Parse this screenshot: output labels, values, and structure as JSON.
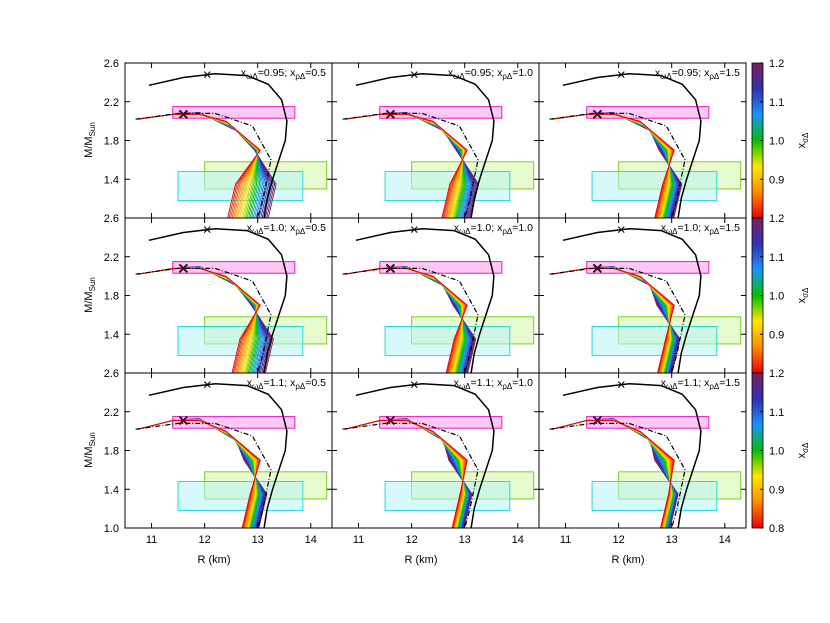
{
  "figure": {
    "xlabel": "R (km)",
    "ylabel_main": "M/M",
    "ylabel_sub": "Sun",
    "colorbar_label_main": "x",
    "colorbar_label_sub": "σΔ"
  },
  "chart_data": {
    "type": "line",
    "grid": false,
    "xlim": [
      10.5,
      14.4
    ],
    "ylim": [
      1.0,
      2.6
    ],
    "x_ticks": [
      "11",
      "12",
      "13",
      "14"
    ],
    "y_ticks_top": [
      "1.4",
      "1.8",
      "2.2",
      "2.6"
    ],
    "y_ticks_bottom": [
      "1.0",
      "1.4",
      "1.8",
      "2.2",
      "2.6"
    ],
    "colorbar_range": [
      0.8,
      1.2
    ],
    "colorbar_ticks": [
      "0.8",
      "0.9",
      "1.0",
      "1.1",
      "1.2"
    ],
    "colormap": [
      "#e8000b",
      "#ff8c00",
      "#ffe600",
      "#00c000",
      "#1e90ff",
      "#3030b0",
      "#7a1f5a"
    ],
    "constraint_boxes": [
      {
        "name": "magenta",
        "r": [
          11.4,
          13.7
        ],
        "m": [
          2.03,
          2.15
        ],
        "fill": "#ff99ee",
        "stroke": "#e020c0"
      },
      {
        "name": "green",
        "r": [
          12.0,
          14.3
        ],
        "m": [
          1.3,
          1.58
        ],
        "fill": "#d6f5a8",
        "stroke": "#7ad020"
      },
      {
        "name": "cyan",
        "r": [
          11.5,
          13.85
        ],
        "m": [
          1.18,
          1.48
        ],
        "fill": "#b8f4f4",
        "stroke": "#30d8d8"
      }
    ],
    "panels": [
      {
        "label_w": "0.95",
        "label_r": "0.5",
        "row": 0,
        "col": 0,
        "spread": 0.85
      },
      {
        "label_w": "0.95",
        "label_r": "1.0",
        "row": 0,
        "col": 1,
        "spread": 0.6
      },
      {
        "label_w": "0.95",
        "label_r": "1.5",
        "row": 0,
        "col": 2,
        "spread": 0.4
      },
      {
        "label_w": "1.0",
        "label_r": "0.5",
        "row": 1,
        "col": 0,
        "spread": 0.7
      },
      {
        "label_w": "1.0",
        "label_r": "1.0",
        "row": 1,
        "col": 1,
        "spread": 0.45
      },
      {
        "label_w": "1.0",
        "label_r": "1.5",
        "row": 1,
        "col": 2,
        "spread": 0.3
      },
      {
        "label_w": "1.1",
        "label_r": "0.5",
        "row": 2,
        "col": 0,
        "spread": 0.35
      },
      {
        "label_w": "1.1",
        "label_r": "1.0",
        "row": 2,
        "col": 1,
        "spread": 0.25
      },
      {
        "label_w": "1.1",
        "label_r": "1.5",
        "row": 2,
        "col": 2,
        "spread": 0.2
      }
    ],
    "label_prefix_w": "x",
    "label_sub_w": "ωΔ",
    "label_prefix_r": "x",
    "label_sub_r": "ρΔ"
  }
}
